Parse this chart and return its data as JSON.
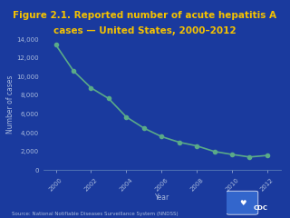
{
  "title_line1": "Figure 2.1. Reported number of acute hepatitis A",
  "title_line2": "cases — United States, 2000–2012",
  "xlabel": "Year",
  "ylabel": "Number of cases",
  "source": "Source: National Notifiable Diseases Surveillance System (NNDSS)",
  "years": [
    2000,
    2001,
    2002,
    2003,
    2004,
    2005,
    2006,
    2007,
    2008,
    2009,
    2010,
    2011,
    2012
  ],
  "values": [
    13397,
    10616,
    8795,
    7653,
    5683,
    4488,
    3579,
    2979,
    2585,
    1987,
    1670,
    1398,
    1562
  ],
  "background_color": "#1a3a9e",
  "plot_bg_color": "#1a3a9e",
  "line_color": "#5aaa88",
  "marker_color": "#5aaa88",
  "title_color": "#f5c200",
  "axis_label_color": "#aabbdd",
  "tick_label_color": "#aabbdd",
  "source_color": "#aabbdd",
  "spine_color": "#6688bb",
  "ylim": [
    0,
    14000
  ],
  "yticks": [
    0,
    2000,
    4000,
    6000,
    8000,
    10000,
    12000,
    14000
  ],
  "xticks": [
    2000,
    2002,
    2004,
    2006,
    2008,
    2010,
    2012
  ],
  "title_fontsize": 7.5,
  "axis_label_fontsize": 5.5,
  "tick_fontsize": 5.0,
  "source_fontsize": 4.0,
  "line_width": 1.2,
  "marker_size": 3.0
}
